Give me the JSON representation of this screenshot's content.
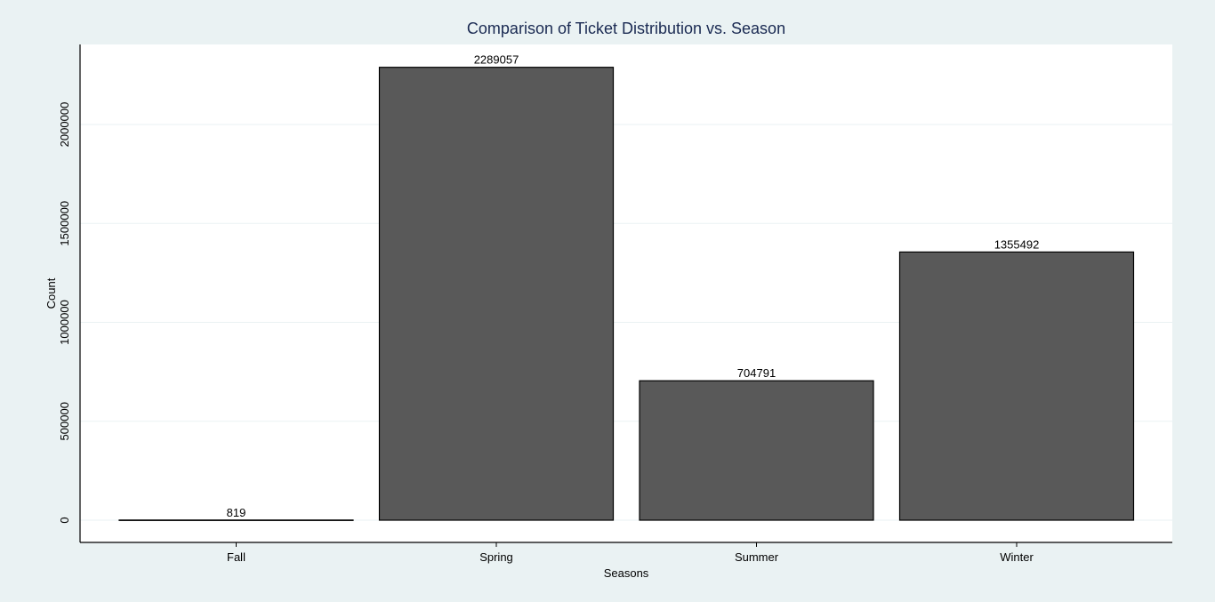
{
  "chart_data": {
    "type": "bar",
    "title": "Comparison of Ticket Distribution vs. Season",
    "xlabel": "Seasons",
    "ylabel": "Count",
    "categories": [
      "Fall",
      "Spring",
      "Summer",
      "Winter"
    ],
    "values": [
      819,
      2289057,
      704791,
      1355492
    ],
    "data_labels": [
      "819",
      "2289057",
      "704791",
      "1355492"
    ],
    "y_ticks": [
      0,
      500000,
      1000000,
      1500000,
      2000000
    ],
    "y_tick_labels": [
      "0",
      "500000",
      "1000000",
      "1500000",
      "2000000"
    ],
    "ylim": [
      0,
      2400000
    ],
    "grid": true,
    "legend": "none",
    "colors": {
      "background": "#eaf2f3",
      "plot_background": "#ffffff",
      "bar_fill": "#595959",
      "bar_stroke": "#000000",
      "grid": "#eaf2f3",
      "title": "#1a2a52"
    }
  }
}
